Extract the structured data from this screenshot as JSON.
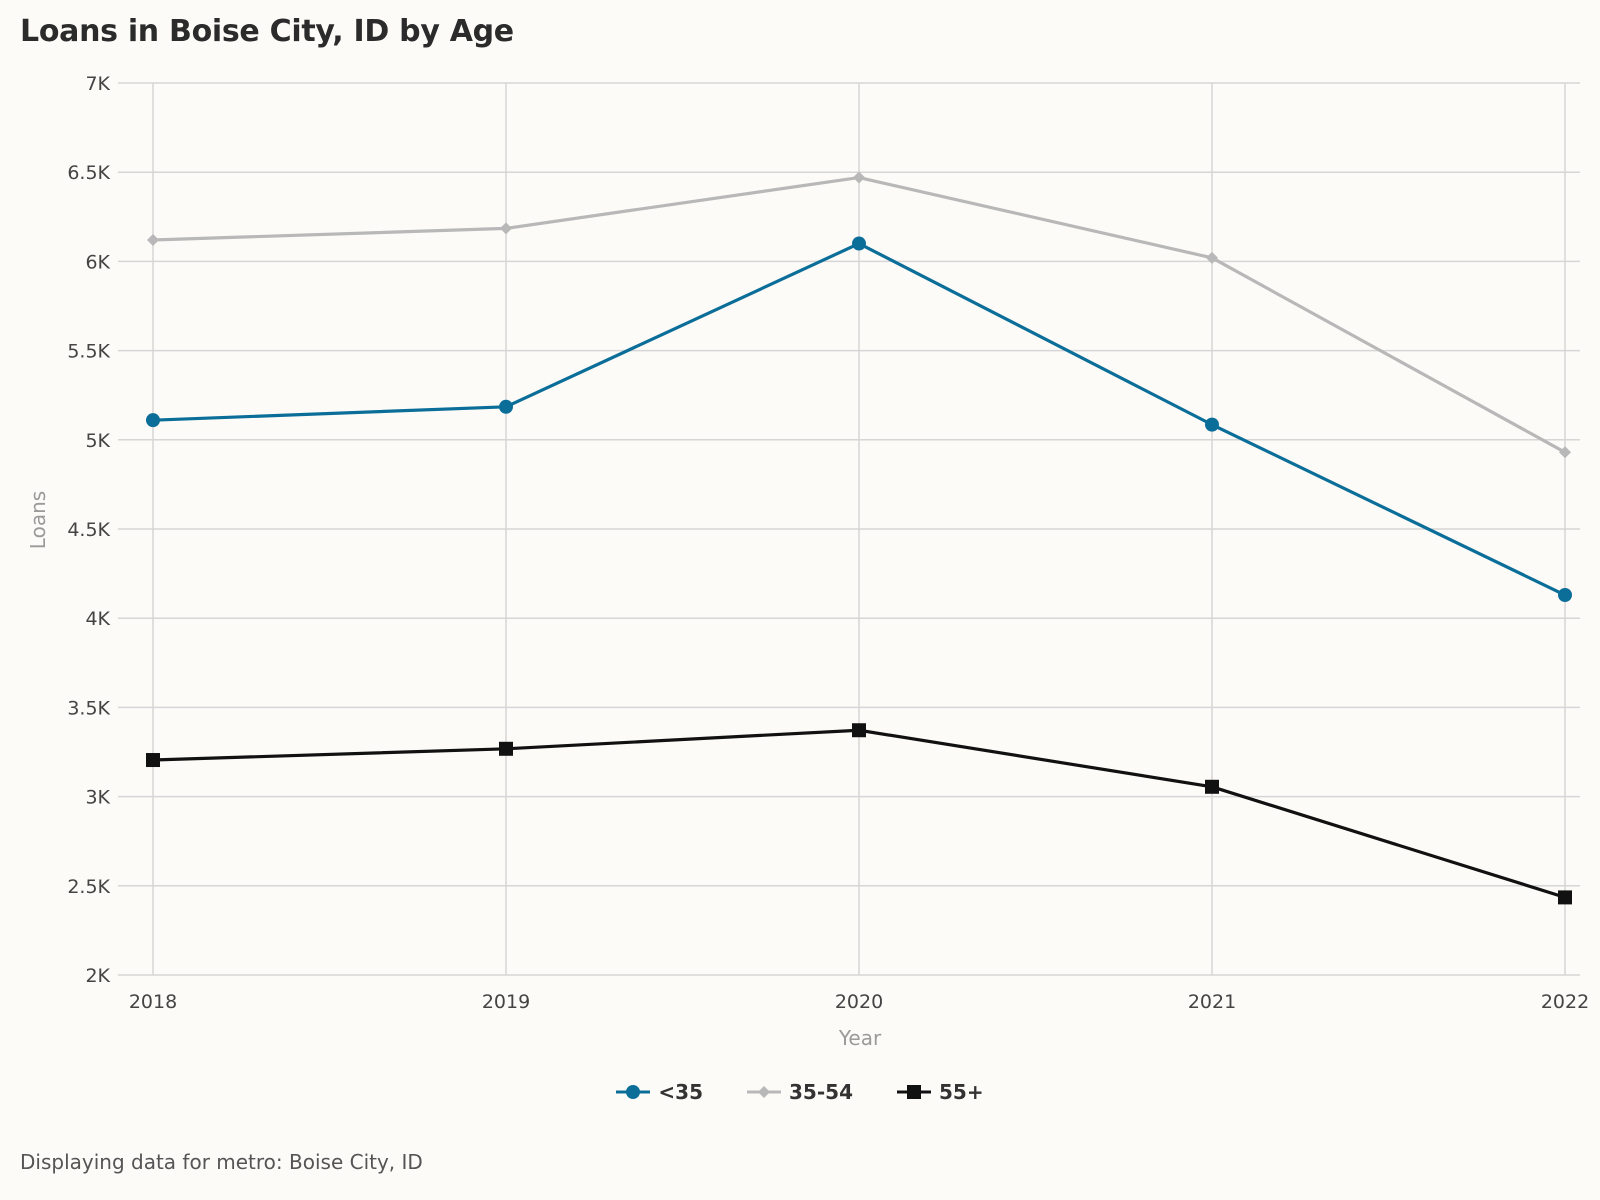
{
  "title": "Loans in Boise City, ID by Age",
  "footnote": "Displaying data for metro: Boise City, ID",
  "chart_data": {
    "type": "line",
    "title": "Loans in Boise City, ID by Age",
    "xlabel": "Year",
    "ylabel": "Loans",
    "categories": [
      "2018",
      "2019",
      "2020",
      "2021",
      "2022"
    ],
    "ylim": [
      2000,
      7000
    ],
    "y_ticks": [
      2000,
      2500,
      3000,
      3500,
      4000,
      4500,
      5000,
      5500,
      6000,
      6500,
      7000
    ],
    "y_tick_labels": [
      "2K",
      "2.5K",
      "3K",
      "3.5K",
      "4K",
      "4.5K",
      "5K",
      "5.5K",
      "6K",
      "6.5K",
      "7K"
    ],
    "grid": true,
    "legend_position": "bottom",
    "series": [
      {
        "name": "<35",
        "values": [
          5110,
          5185,
          6100,
          5085,
          4130
        ],
        "color": "#0b6e99",
        "marker": "circle"
      },
      {
        "name": "35-54",
        "values": [
          6120,
          6185,
          6470,
          6020,
          4930
        ],
        "color": "#b8b8b8",
        "marker": "diamond"
      },
      {
        "name": "55+",
        "values": [
          3205,
          3268,
          3372,
          3055,
          2435
        ],
        "color": "#111111",
        "marker": "square"
      }
    ]
  }
}
